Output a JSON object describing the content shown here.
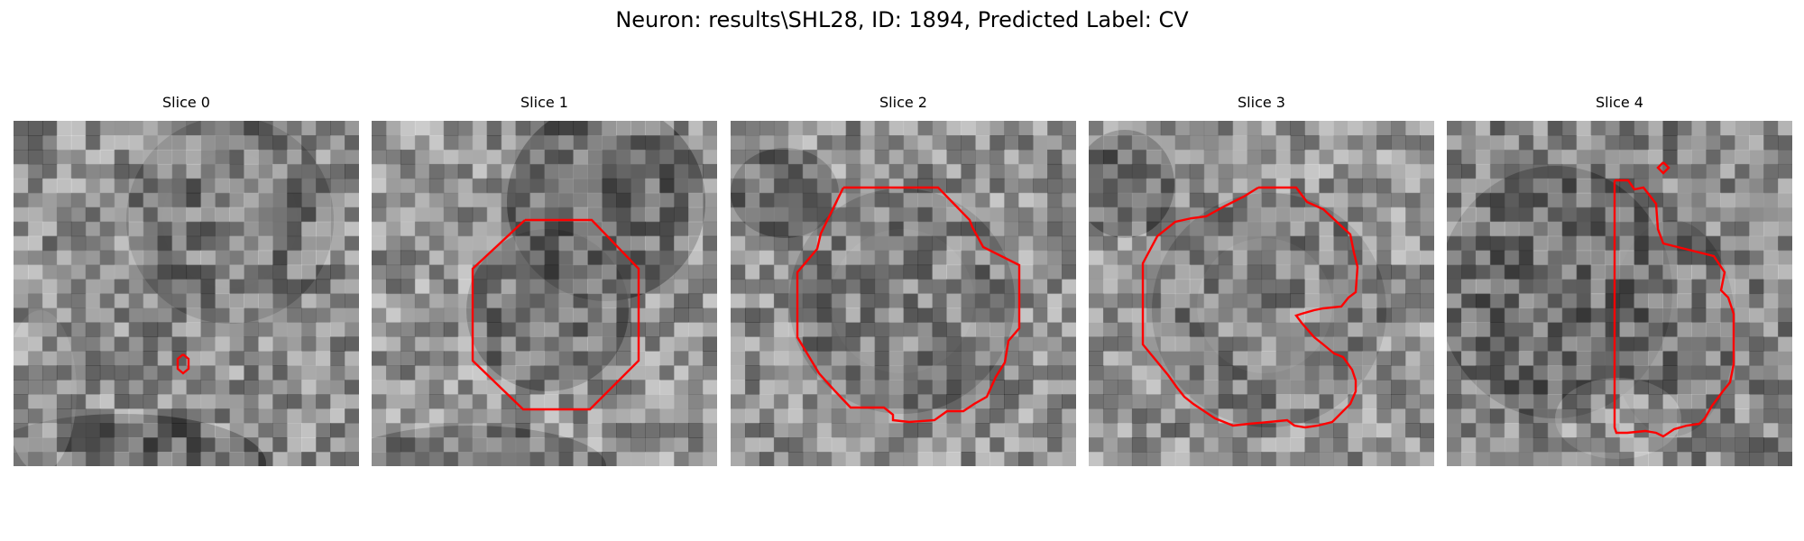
{
  "figure": {
    "title": "Neuron: results\\SHL28, ID: 1894, Predicted Label: CV",
    "contour_color": "#ff0000",
    "colormap": "grayscale",
    "panels": [
      {
        "title": "Slice 0"
      },
      {
        "title": "Slice 1"
      },
      {
        "title": "Slice 2"
      },
      {
        "title": "Slice 3"
      },
      {
        "title": "Slice 4"
      }
    ]
  }
}
